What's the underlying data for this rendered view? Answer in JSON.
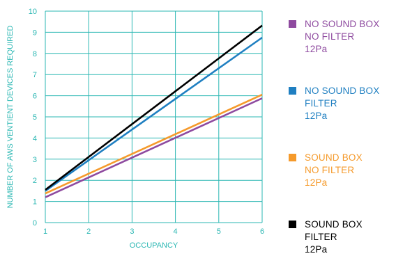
{
  "chart_data": {
    "type": "line",
    "xlabel": "OCCUPANCY",
    "ylabel": "NUMBER OF AWS VENTIENT DEVICES REQUIRED",
    "xlim": [
      1,
      6
    ],
    "ylim": [
      0,
      10
    ],
    "x_ticks": [
      "1",
      "2",
      "3",
      "4",
      "5",
      "6"
    ],
    "y_ticks": [
      "0",
      "1",
      "2",
      "3",
      "4",
      "5",
      "6",
      "7",
      "8",
      "9",
      "10"
    ],
    "grid": true,
    "legend_position": "right",
    "axis_color": "#2bb7b3",
    "series": [
      {
        "name": "NO SOUND BOX NO FILTER 12Pa",
        "label_lines": [
          "NO SOUND BOX",
          "NO FILTER",
          "12Pa"
        ],
        "color": "#8e4a9f",
        "x": [
          1,
          6
        ],
        "y": [
          1.2,
          5.88
        ]
      },
      {
        "name": "NO SOUND BOX FILTER 12Pa",
        "label_lines": [
          "NO SOUND BOX",
          "FILTER",
          "12Pa"
        ],
        "color": "#1f7fc1",
        "x": [
          1,
          6
        ],
        "y": [
          1.5,
          8.75
        ]
      },
      {
        "name": "SOUND BOX NO FILTER 12Pa",
        "label_lines": [
          "SOUND BOX",
          "NO FILTER",
          "12Pa"
        ],
        "color": "#f59a2b",
        "x": [
          1,
          6
        ],
        "y": [
          1.38,
          6.05
        ]
      },
      {
        "name": "SOUND BOX FILTER 12Pa",
        "label_lines": [
          "SOUND BOX",
          "FILTER",
          "12Pa"
        ],
        "color": "#000000",
        "x": [
          1,
          6
        ],
        "y": [
          1.55,
          9.32
        ]
      }
    ]
  }
}
